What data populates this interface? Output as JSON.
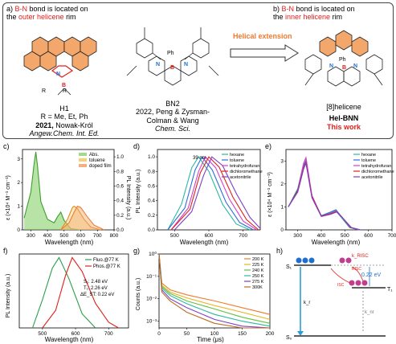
{
  "top": {
    "a": {
      "letter": "a)",
      "text_red": "B-N",
      "text_mid": " bond is located on",
      "line2_pre": "the ",
      "line2_red": "outer helicene",
      "line2_post": " rim"
    },
    "b": {
      "letter": "b)",
      "text_red": "B-N",
      "text_mid": " bond is located on",
      "line2_pre": "the ",
      "line2_red": "inner helicene",
      "line2_post": " rim"
    },
    "arrow_label": "Helical extension",
    "h1": {
      "name": "H1",
      "r": "R = Me, Et, Ph",
      "year": "2021,",
      "authors": "Nowak-Król",
      "journal": "Angew.Chem. Int. Ed."
    },
    "bn2": {
      "name": "BN2",
      "line1": "2022, Peng & Zysman-",
      "line2": "Colman & Wang",
      "journal": "Chem. Sci."
    },
    "hel": {
      "bracket": "[8]helicene",
      "name": "Hel-BNN",
      "tag": "This work"
    }
  },
  "panels": {
    "c": {
      "letter": "c)",
      "ylabel": "ε (×10⁴ M⁻¹ cm⁻¹)",
      "ylabel2": "PL Intensity (a.u.)",
      "xlabel": "Wavelength (nm)",
      "legend": [
        "Abs.",
        "toluene",
        "doped film"
      ],
      "xticks": [
        "300",
        "400",
        "500",
        "600",
        "700",
        "800"
      ],
      "yticks": [
        "0",
        "1",
        "2",
        "3"
      ],
      "y2ticks": [
        "0.0",
        "0.2",
        "0.4",
        "0.6",
        "0.8",
        "1.0"
      ]
    },
    "d": {
      "letter": "d)",
      "ylabel": "PL Intensity (a.u.)",
      "xlabel": "Wavelength (nm)",
      "annotation": "39 nm",
      "legend": [
        "hexane",
        "toluene",
        "tetrahydrofuran",
        "dichloromethane",
        "acetonitrile"
      ],
      "xticks": [
        "500",
        "600",
        "700"
      ],
      "yticks": [
        "0.0",
        "0.2",
        "0.4",
        "0.6",
        "0.8",
        "1.0"
      ]
    },
    "e": {
      "letter": "e)",
      "ylabel": "ε (×10⁴ M⁻¹ cm⁻¹)",
      "xlabel": "Wavelength (nm)",
      "legend": [
        "hexane",
        "toluene",
        "tetrahydrofuran",
        "dichloromethane",
        "acetonitrile"
      ],
      "xticks": [
        "300",
        "400",
        "500",
        "600",
        "700"
      ],
      "yticks": [
        "0",
        "1",
        "2",
        "3"
      ]
    },
    "f": {
      "letter": "f)",
      "ylabel": "PL Intensity (a.u.)",
      "xlabel": "Wavelength (nm)",
      "legend": [
        "Fluo.@77 K",
        "Phos.@77 K"
      ],
      "s1": "S₁: 2.48 eV",
      "t1": "T₁: 2.26 eV",
      "dest": "ΔE_ST: 0.22 eV",
      "xticks": [
        "500",
        "600",
        "700"
      ]
    },
    "g": {
      "letter": "g)",
      "ylabel": "Counts (a.u.)",
      "xlabel": "Time (μs)",
      "legend": [
        "200 K",
        "225 K",
        "240 K",
        "250 K",
        "275 K",
        "300K"
      ],
      "xticks": [
        "0",
        "50",
        "100",
        "150",
        "200"
      ],
      "yticks": [
        "10⁻³",
        "10⁻²",
        "10⁻¹",
        "10⁰"
      ]
    },
    "h": {
      "letter": "h)",
      "s1": "S₁",
      "t1": "T₁",
      "s0": "S₀",
      "krisc": "k_RISC",
      "risc": "RISC",
      "isc": "ISC",
      "gap": "0.22 eV",
      "kr": "k_r",
      "knr": "k_nr"
    }
  },
  "colors": {
    "red": "#e0201b",
    "orange": "#f07a2e",
    "green": "#62c13b",
    "blue": "#1f6fd1"
  },
  "chart_data": [
    {
      "type": "line",
      "title": "",
      "xlabel": "Wavelength (nm)",
      "ylabel": "ε (×10⁴ M⁻¹ cm⁻¹)",
      "xlim": [
        250,
        800
      ],
      "ylim": [
        0,
        3.4
      ],
      "series": [
        {
          "name": "Abs.",
          "x": [
            260,
            300,
            320,
            330,
            340,
            360,
            400,
            440,
            460,
            480,
            500,
            540,
            600
          ],
          "values": [
            0.5,
            1.6,
            2.8,
            3.3,
            2.7,
            1.2,
            0.45,
            0.3,
            0.55,
            0.75,
            0.4,
            0.05,
            0
          ]
        },
        {
          "name": "toluene",
          "x": [
            480,
            520,
            550,
            560,
            580,
            620,
            660,
            720
          ],
          "values": [
            0,
            0.45,
            0.95,
            1.0,
            0.9,
            0.45,
            0.12,
            0
          ]
        },
        {
          "name": "doped film",
          "x": [
            480,
            530,
            560,
            580,
            600,
            640,
            680,
            740
          ],
          "values": [
            0,
            0.3,
            0.75,
            1.0,
            0.95,
            0.55,
            0.2,
            0
          ]
        }
      ]
    },
    {
      "type": "line",
      "title": "",
      "xlabel": "Wavelength (nm)",
      "ylabel": "PL Intensity (a.u.)",
      "xlim": [
        450,
        750
      ],
      "ylim": [
        0,
        1.1
      ],
      "series": [
        {
          "name": "hexane",
          "x": [
            480,
            520,
            550,
            570,
            600,
            640,
            680,
            720
          ],
          "values": [
            0,
            0.35,
            0.85,
            1.0,
            0.8,
            0.35,
            0.08,
            0
          ]
        },
        {
          "name": "toluene",
          "x": [
            480,
            530,
            560,
            580,
            610,
            650,
            690,
            730
          ],
          "values": [
            0,
            0.3,
            0.82,
            1.0,
            0.82,
            0.38,
            0.1,
            0
          ]
        },
        {
          "name": "tetrahydrofuran",
          "x": [
            490,
            540,
            570,
            590,
            620,
            660,
            700,
            740
          ],
          "values": [
            0,
            0.3,
            0.8,
            1.0,
            0.85,
            0.42,
            0.12,
            0
          ]
        },
        {
          "name": "dichloromethane",
          "x": [
            490,
            545,
            575,
            600,
            630,
            670,
            710,
            745
          ],
          "values": [
            0,
            0.28,
            0.78,
            1.0,
            0.86,
            0.45,
            0.14,
            0
          ]
        },
        {
          "name": "acetonitrile",
          "x": [
            500,
            550,
            585,
            609,
            640,
            680,
            720,
            750
          ],
          "values": [
            0,
            0.25,
            0.75,
            1.0,
            0.88,
            0.5,
            0.17,
            0.02
          ]
        }
      ]
    },
    {
      "type": "line",
      "title": "",
      "xlabel": "Wavelength (nm)",
      "ylabel": "ε (×10⁴ M⁻¹ cm⁻¹)",
      "xlim": [
        250,
        700
      ],
      "ylim": [
        0,
        3.5
      ],
      "series": [
        {
          "name": "hexane",
          "x": [
            260,
            300,
            325,
            335,
            360,
            400,
            440,
            460,
            480,
            520,
            560
          ],
          "values": [
            1.0,
            1.8,
            2.9,
            3.1,
            1.5,
            0.6,
            0.75,
            0.85,
            0.6,
            0.1,
            0
          ]
        },
        {
          "name": "toluene",
          "x": [
            260,
            300,
            325,
            335,
            360,
            400,
            440,
            462,
            482,
            522,
            562
          ],
          "values": [
            1.0,
            1.75,
            2.8,
            3.0,
            1.45,
            0.62,
            0.78,
            0.88,
            0.62,
            0.1,
            0
          ]
        },
        {
          "name": "tetrahydrofuran",
          "x": [
            260,
            300,
            325,
            335,
            360,
            400,
            440,
            463,
            484,
            524,
            564
          ],
          "values": [
            1.0,
            1.7,
            2.9,
            3.15,
            1.5,
            0.6,
            0.72,
            0.82,
            0.6,
            0.1,
            0
          ]
        },
        {
          "name": "dichloromethane",
          "x": [
            260,
            300,
            325,
            335,
            360,
            400,
            440,
            464,
            486,
            526,
            566
          ],
          "values": [
            1.0,
            1.7,
            2.7,
            2.95,
            1.45,
            0.6,
            0.7,
            0.8,
            0.58,
            0.1,
            0
          ]
        },
        {
          "name": "acetonitrile",
          "x": [
            260,
            300,
            325,
            335,
            360,
            400,
            440,
            465,
            488,
            528,
            568
          ],
          "values": [
            1.0,
            1.65,
            2.65,
            2.9,
            1.4,
            0.58,
            0.68,
            0.78,
            0.55,
            0.1,
            0
          ]
        }
      ]
    },
    {
      "type": "line",
      "title": "",
      "xlabel": "Wavelength (nm)",
      "ylabel": "PL Intensity (a.u.)",
      "xlim": [
        430,
        760
      ],
      "ylim": [
        0,
        1.05
      ],
      "series": [
        {
          "name": "Fluo.@77 K",
          "x": [
            470,
            500,
            530,
            550,
            580,
            620,
            660
          ],
          "values": [
            0,
            0.4,
            0.85,
            1.0,
            0.7,
            0.2,
            0
          ]
        },
        {
          "name": "Phos.@77 K",
          "x": [
            500,
            540,
            570,
            590,
            620,
            660,
            700,
            730
          ],
          "values": [
            0,
            0.25,
            0.75,
            1.0,
            0.8,
            0.35,
            0.08,
            0
          ]
        }
      ]
    },
    {
      "type": "line",
      "title": "",
      "xlabel": "Time (μs)",
      "ylabel": "Counts (a.u.)",
      "xlim": [
        0,
        200
      ],
      "ylim": [
        0.0005,
        1
      ],
      "series": [
        {
          "name": "200 K",
          "x": [
            0,
            5,
            20,
            50,
            100,
            150,
            200
          ],
          "values": [
            1,
            0.05,
            0.025,
            0.015,
            0.008,
            0.004,
            0.002
          ]
        },
        {
          "name": "225 K",
          "x": [
            0,
            5,
            20,
            50,
            100,
            150,
            200
          ],
          "values": [
            1,
            0.04,
            0.02,
            0.011,
            0.005,
            0.0025,
            0.0012
          ]
        },
        {
          "name": "240 K",
          "x": [
            0,
            5,
            20,
            50,
            100,
            150,
            200
          ],
          "values": [
            1,
            0.035,
            0.017,
            0.008,
            0.0035,
            0.0015,
            0.0008
          ]
        },
        {
          "name": "250 K",
          "x": [
            0,
            5,
            20,
            50,
            100,
            150,
            200
          ],
          "values": [
            1,
            0.03,
            0.014,
            0.006,
            0.002,
            0.001,
            0.0006
          ]
        },
        {
          "name": "275 K",
          "x": [
            0,
            5,
            20,
            50,
            100,
            150,
            200
          ],
          "values": [
            1,
            0.025,
            0.01,
            0.004,
            0.0012,
            0.0006,
            0.0005
          ]
        },
        {
          "name": "300K",
          "x": [
            0,
            5,
            20,
            50,
            100,
            150,
            200
          ],
          "values": [
            1,
            0.02,
            0.008,
            0.0025,
            0.0008,
            0.0005,
            0.0005
          ]
        }
      ]
    }
  ]
}
